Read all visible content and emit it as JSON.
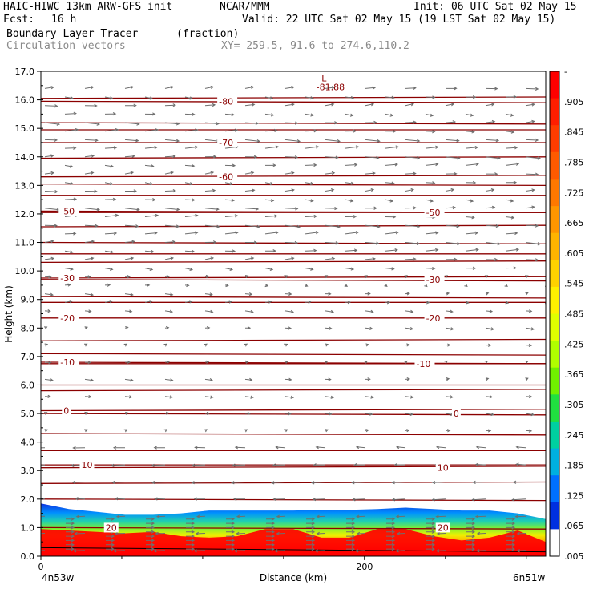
{
  "header": {
    "model": "HAIC-HIWC 13km ARW-GFS init",
    "org": "NCAR/MMM",
    "init": "Init: 06 UTC Sat 02 May 15",
    "fcst_label": "Fcst:",
    "fcst_value": "16 h",
    "valid": "Valid: 22 UTC Sat 02 May 15 (19 LST Sat 02 May 15)",
    "field": "Boundary Layer Tracer",
    "units": "(fraction)",
    "vectors": "Circulation vectors",
    "xy": "XY= 259.5, 91.6 to 274.6,110.2"
  },
  "chart_data": {
    "type": "heatmap",
    "ylabel": "Height (km)",
    "xlabel": "Distance (km)",
    "x_left_label": "4n53w",
    "x_right_label": "6n51w",
    "xlim": [
      0,
      312
    ],
    "ylim": [
      0,
      17
    ],
    "x_ticks": [
      "0",
      "200"
    ],
    "y_ticks": [
      "0.0",
      "1.0",
      "2.0",
      "3.0",
      "4.0",
      "5.0",
      "6.0",
      "7.0",
      "8.0",
      "9.0",
      "10.0",
      "11.0",
      "12.0",
      "13.0",
      "14.0",
      "15.0",
      "16.0",
      "17.0"
    ],
    "colorbar_labels": [
      "-",
      ".905",
      ".845",
      ".785",
      ".725",
      ".665",
      ".605",
      ".545",
      ".485",
      ".425",
      ".365",
      ".305",
      ".245",
      ".185",
      ".125",
      ".065",
      ".005"
    ],
    "colorbar_colors": [
      "#ff0000",
      "#ff1e00",
      "#ff3c00",
      "#ff5a00",
      "#ff7800",
      "#ff9600",
      "#ffb400",
      "#ffd200",
      "#fff000",
      "#e0ff00",
      "#b0ff00",
      "#70f000",
      "#20e040",
      "#00d0a0",
      "#00b0e0",
      "#0070ff",
      "#0030e0",
      "#ffffff"
    ],
    "temperature_contours": [
      {
        "label": "-80",
        "height": 15.95,
        "label_x": 110
      },
      {
        "label": "-70",
        "height": 14.5,
        "label_x": 110
      },
      {
        "label": "-60",
        "height": 13.3,
        "label_x": 110
      },
      {
        "label": "-50",
        "height": 12.1,
        "label_x": 12
      },
      {
        "label": "-50",
        "height": 12.05,
        "label_x": 238
      },
      {
        "label": "-30",
        "height": 9.75,
        "label_x": 12
      },
      {
        "label": "-30",
        "height": 9.7,
        "label_x": 238
      },
      {
        "label": "-20",
        "height": 8.35,
        "label_x": 12
      },
      {
        "label": "-20",
        "height": 8.35,
        "label_x": 238
      },
      {
        "label": "-10",
        "height": 6.8,
        "label_x": 12
      },
      {
        "label": "-10",
        "height": 6.75,
        "label_x": 232
      },
      {
        "label": "0",
        "height": 5.1,
        "label_x": 14
      },
      {
        "label": "0",
        "height": 5.0,
        "label_x": 255
      },
      {
        "label": "10",
        "height": 3.2,
        "label_x": 25
      },
      {
        "label": "10",
        "height": 3.1,
        "label_x": 245
      },
      {
        "label": "20",
        "height": 1.0,
        "label_x": 40
      },
      {
        "label": "20",
        "height": 1.0,
        "label_x": 245
      }
    ],
    "extra_contour_heights": [
      16.05,
      15.2,
      14.95,
      13.95,
      13.05,
      12.65,
      11.55,
      11.0,
      10.6,
      10.3,
      9.1,
      8.9,
      7.55,
      7.1,
      6.0,
      5.8,
      4.3,
      3.7,
      2.55,
      2.0
    ],
    "minimum": {
      "symbol": "L",
      "value": "-81.88",
      "x": 175,
      "height": 16.7
    },
    "tracer_top_km": [
      1.85,
      1.65,
      1.55,
      1.45,
      1.45,
      1.5,
      1.6,
      1.6,
      1.6,
      1.6,
      1.62,
      1.62,
      1.65,
      1.7,
      1.65,
      1.6,
      1.6,
      1.5,
      1.3
    ],
    "tracer_red_top_km": [
      0.95,
      0.9,
      0.85,
      0.8,
      0.85,
      0.7,
      0.65,
      0.7,
      0.95,
      0.95,
      0.65,
      0.65,
      0.95,
      0.95,
      0.7,
      0.55,
      0.65,
      0.9,
      0.5
    ]
  }
}
